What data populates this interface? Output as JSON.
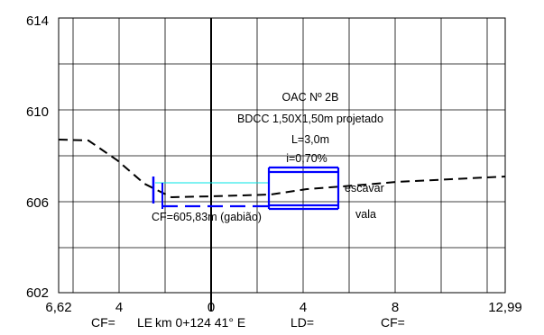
{
  "y_axis": {
    "ticks": [
      "614",
      "610",
      "606",
      "602"
    ]
  },
  "x_axis": {
    "ticks": [
      "6,62",
      "4",
      "0",
      "4",
      "8",
      "12,99"
    ]
  },
  "structure": {
    "name": "OAC Nº 2B",
    "description": "BDCC 1,50X1,50m projetado",
    "length": "L=3,0m",
    "slope": "i=0,70%"
  },
  "annotations": {
    "invert": "CF=605,83m (gabião)",
    "excavate_1": "escavar",
    "excavate_2": "vala"
  },
  "footer": {
    "cf_left": "CF=",
    "le": "LE",
    "station": "km 0+124  41° E",
    "ld": "LD=",
    "cf_right": "CF="
  },
  "colors": {
    "grid": "#000000",
    "culvert": "#0000ff",
    "water_line": "#00e5e5",
    "terrain": "#000000"
  }
}
